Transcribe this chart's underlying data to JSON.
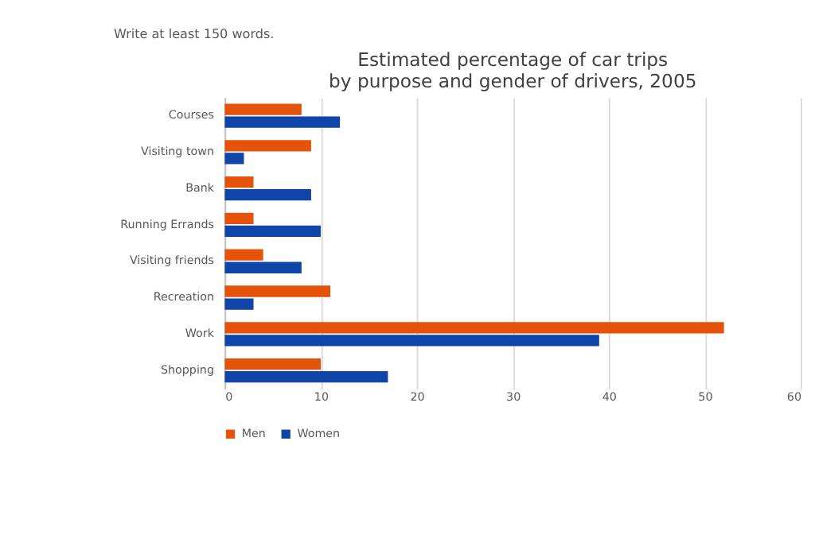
{
  "chart_data": {
    "type": "bar",
    "orientation": "horizontal",
    "title": [
      "Estimated percentage of car trips",
      "by purpose and gender of drivers, 2005"
    ],
    "annotations": [
      "Write at least 150 words."
    ],
    "categories": [
      "Courses",
      "Visiting town",
      "Bank",
      "Running Errands",
      "Visiting friends",
      "Recreation",
      "Work",
      "Shopping"
    ],
    "series": [
      {
        "name": "Men",
        "color": "#e5530a",
        "values": [
          8,
          9,
          3,
          3,
          4,
          11,
          52,
          10
        ]
      },
      {
        "name": "Women",
        "color": "#0f45a8",
        "values": [
          12,
          2,
          9,
          10,
          8,
          3,
          39,
          17
        ]
      }
    ],
    "xlim": [
      0,
      60
    ],
    "xticks": [
      0,
      10,
      20,
      30,
      40,
      50,
      60
    ],
    "grid": "x",
    "legend": "bottom"
  }
}
